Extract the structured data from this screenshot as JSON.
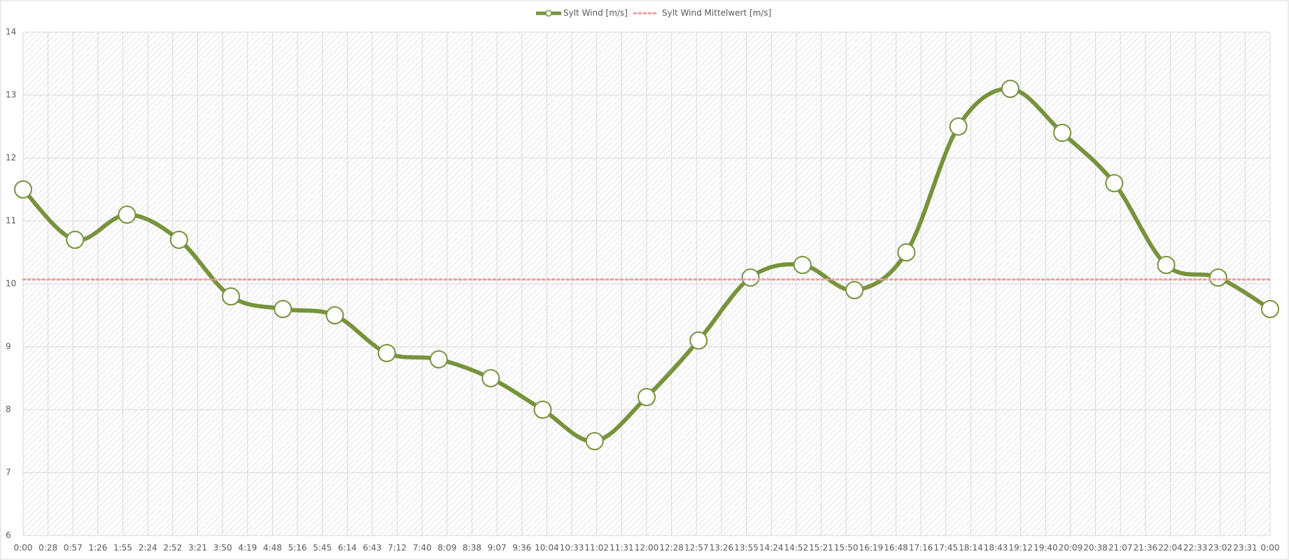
{
  "chart_data": {
    "type": "line",
    "x": [
      0,
      60,
      120,
      180,
      240,
      300,
      360,
      420,
      480,
      540,
      600,
      660,
      720,
      780,
      840,
      900,
      960,
      1020,
      1080,
      1140,
      1200,
      1260,
      1320,
      1380,
      1440
    ],
    "series": [
      {
        "name": "Sylt Wind [m/s]",
        "color": "#77933c",
        "values": [
          11.5,
          10.7,
          11.1,
          10.7,
          9.8,
          9.6,
          9.5,
          8.9,
          8.8,
          8.5,
          8.0,
          7.5,
          8.2,
          9.1,
          10.1,
          10.3,
          9.9,
          10.5,
          12.5,
          13.1,
          12.4,
          11.6,
          10.3,
          10.1,
          9.6
        ]
      },
      {
        "name": "Sylt Wind Mittelwert [m/s]",
        "color": "#e8a0a0",
        "values": [
          10.07,
          10.07,
          10.07,
          10.07,
          10.07,
          10.07,
          10.07,
          10.07,
          10.07,
          10.07,
          10.07,
          10.07,
          10.07,
          10.07,
          10.07,
          10.07,
          10.07,
          10.07,
          10.07,
          10.07,
          10.07,
          10.07,
          10.07,
          10.07,
          10.07
        ]
      }
    ],
    "xlim": [
      0,
      1440
    ],
    "xticks": [
      {
        "value": 0,
        "label": "0:00"
      },
      {
        "value": 28.8,
        "label": "0:28"
      },
      {
        "value": 57.6,
        "label": "0:57"
      },
      {
        "value": 86.4,
        "label": "1:26"
      },
      {
        "value": 115.2,
        "label": "1:55"
      },
      {
        "value": 144,
        "label": "2:24"
      },
      {
        "value": 172.8,
        "label": "2:52"
      },
      {
        "value": 201.6,
        "label": "3:21"
      },
      {
        "value": 230.4,
        "label": "3:50"
      },
      {
        "value": 259.2,
        "label": "4:19"
      },
      {
        "value": 288,
        "label": "4:48"
      },
      {
        "value": 316.8,
        "label": "5:16"
      },
      {
        "value": 345.6,
        "label": "5:45"
      },
      {
        "value": 374.4,
        "label": "6:14"
      },
      {
        "value": 403.2,
        "label": "6:43"
      },
      {
        "value": 432,
        "label": "7:12"
      },
      {
        "value": 460.8,
        "label": "7:40"
      },
      {
        "value": 489.6,
        "label": "8:09"
      },
      {
        "value": 518.4,
        "label": "8:38"
      },
      {
        "value": 547.2,
        "label": "9:07"
      },
      {
        "value": 576,
        "label": "9:36"
      },
      {
        "value": 604.8,
        "label": "10:04"
      },
      {
        "value": 633.6,
        "label": "10:33"
      },
      {
        "value": 662.4,
        "label": "11:02"
      },
      {
        "value": 691.2,
        "label": "11:31"
      },
      {
        "value": 720,
        "label": "12:00"
      },
      {
        "value": 748.8,
        "label": "12:28"
      },
      {
        "value": 777.6,
        "label": "12:57"
      },
      {
        "value": 806.4,
        "label": "13:26"
      },
      {
        "value": 835.2,
        "label": "13:55"
      },
      {
        "value": 864,
        "label": "14:24"
      },
      {
        "value": 892.8,
        "label": "14:52"
      },
      {
        "value": 921.6,
        "label": "15:21"
      },
      {
        "value": 950.4,
        "label": "15:50"
      },
      {
        "value": 979.2,
        "label": "16:19"
      },
      {
        "value": 1008,
        "label": "16:48"
      },
      {
        "value": 1036.8,
        "label": "17:16"
      },
      {
        "value": 1065.6,
        "label": "17:45"
      },
      {
        "value": 1094.4,
        "label": "18:14"
      },
      {
        "value": 1123.2,
        "label": "18:43"
      },
      {
        "value": 1152,
        "label": "19:12"
      },
      {
        "value": 1180.8,
        "label": "19:40"
      },
      {
        "value": 1209.6,
        "label": "20:09"
      },
      {
        "value": 1238.4,
        "label": "20:38"
      },
      {
        "value": 1267.2,
        "label": "21:07"
      },
      {
        "value": 1296,
        "label": "21:36"
      },
      {
        "value": 1324.8,
        "label": "22:04"
      },
      {
        "value": 1353.6,
        "label": "22:33"
      },
      {
        "value": 1382.4,
        "label": "23:02"
      },
      {
        "value": 1411.2,
        "label": "23:31"
      },
      {
        "value": 1440,
        "label": "0:00"
      }
    ],
    "ylim": [
      6,
      14
    ],
    "yticks": [
      6,
      7,
      8,
      9,
      10,
      11,
      12,
      13,
      14
    ],
    "grid": true,
    "smooth": true,
    "legend": "top"
  }
}
